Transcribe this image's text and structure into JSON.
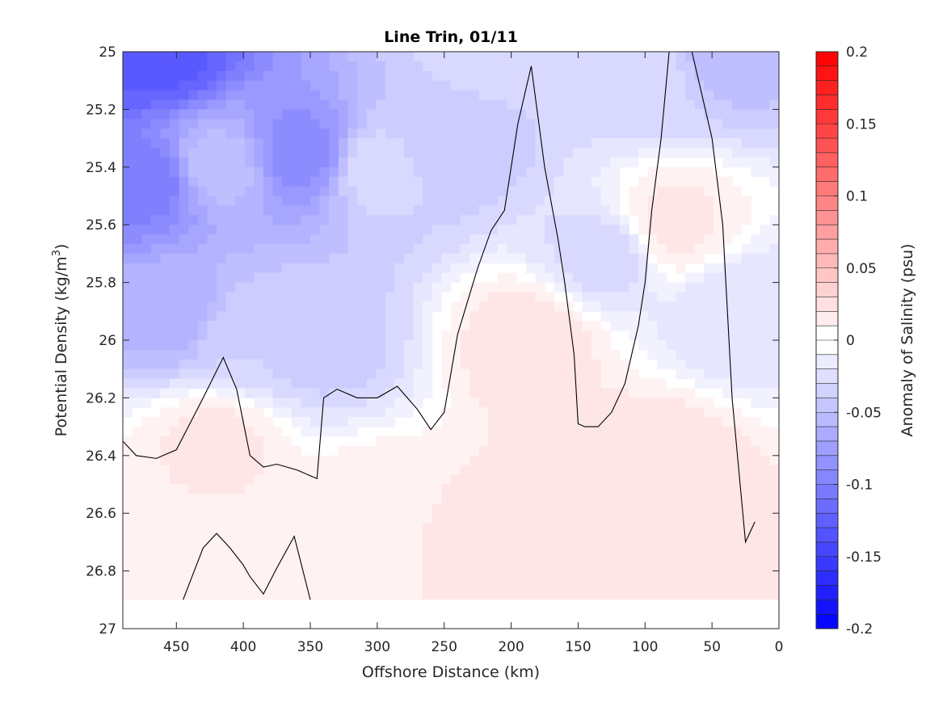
{
  "chart_data": {
    "type": "contour",
    "title": "Line Trin, 01/11",
    "xlabel": "Offshore Distance (km)",
    "ylabel": "Potential Density (kg/m",
    "ylabel_sup": "3",
    "ylabel_end": ")",
    "colorbar_label": "Anomaly of Salinity (psu)",
    "xlim": [
      490,
      0
    ],
    "ylim": [
      25,
      27
    ],
    "x_reversed": true,
    "y_reversed": true,
    "x_ticks": [
      450,
      400,
      350,
      300,
      250,
      200,
      150,
      100,
      50,
      0
    ],
    "y_ticks": [
      25,
      25.2,
      25.4,
      25.6,
      25.8,
      26,
      26.2,
      26.4,
      26.6,
      26.8,
      27
    ],
    "x_tick_labels": [
      "450",
      "400",
      "350",
      "300",
      "250",
      "200",
      "150",
      "100",
      "50",
      "0"
    ],
    "y_tick_labels": [
      "25",
      "25.2",
      "25.4",
      "25.6",
      "25.8",
      "26",
      "26.2",
      "26.4",
      "26.6",
      "26.8",
      "27"
    ],
    "colorbar_ticks": [
      0.2,
      0.15,
      0.1,
      0.05,
      0,
      -0.05,
      -0.1,
      -0.15,
      -0.2
    ],
    "colorbar_tick_labels": [
      "0.2",
      "0.15",
      "0.1",
      "0.05",
      "0",
      "-0.05",
      "-0.1",
      "-0.15",
      "-0.2"
    ],
    "clim": [
      -0.2,
      0.2
    ],
    "level_step": 0.01,
    "colormap": "blue-white-red",
    "colors": {
      "negative_max": "#0000ff",
      "zero": "#ffffff",
      "positive_max": "#ff0000",
      "zero_contour": "#000000"
    },
    "anomaly_fields": [
      {
        "x": 465,
        "y": 25.0,
        "value": -0.13
      },
      {
        "x": 470,
        "y": 25.45,
        "value": -0.1
      },
      {
        "x": 450,
        "y": 25.9,
        "value": -0.06
      },
      {
        "x": 420,
        "y": 25.4,
        "value": -0.05
      },
      {
        "x": 400,
        "y": 26.0,
        "value": -0.035
      },
      {
        "x": 355,
        "y": 25.35,
        "value": -0.09
      },
      {
        "x": 345,
        "y": 26.0,
        "value": -0.04
      },
      {
        "x": 300,
        "y": 25.4,
        "value": -0.03
      },
      {
        "x": 250,
        "y": 25.3,
        "value": -0.045
      },
      {
        "x": 220,
        "y": 25.0,
        "value": -0.03
      },
      {
        "x": 130,
        "y": 25.7,
        "value": -0.03
      },
      {
        "x": 100,
        "y": 25.1,
        "value": -0.03
      },
      {
        "x": 40,
        "y": 25.0,
        "value": -0.05
      },
      {
        "x": 30,
        "y": 25.9,
        "value": -0.025
      },
      {
        "x": 420,
        "y": 26.35,
        "value": 0.018
      },
      {
        "x": 470,
        "y": 26.75,
        "value": 0.012
      },
      {
        "x": 185,
        "y": 26.0,
        "value": 0.022
      },
      {
        "x": 170,
        "y": 26.65,
        "value": 0.025
      },
      {
        "x": 90,
        "y": 26.45,
        "value": 0.025
      },
      {
        "x": 80,
        "y": 25.6,
        "value": 0.018
      },
      {
        "x": 300,
        "y": 26.6,
        "value": 0.015
      }
    ],
    "zero_contours": [
      {
        "x": [
          490,
          480,
          465,
          450,
          430,
          415,
          405,
          395,
          385,
          375,
          360,
          345,
          340,
          330,
          315,
          300,
          285,
          270,
          260,
          250,
          240,
          225,
          215,
          205,
          195,
          185,
          175,
          165,
          160,
          153,
          150,
          145,
          135,
          125,
          115,
          105,
          100,
          95,
          88,
          82,
          75,
          65,
          55,
          50,
          42,
          35,
          25,
          18
        ],
        "y": [
          26.35,
          26.4,
          26.41,
          26.38,
          26.2,
          26.06,
          26.17,
          26.4,
          26.44,
          26.43,
          26.45,
          26.48,
          26.2,
          26.17,
          26.2,
          26.2,
          26.16,
          26.24,
          26.31,
          26.25,
          25.98,
          25.75,
          25.62,
          25.55,
          25.25,
          25.05,
          25.4,
          25.65,
          25.8,
          26.05,
          26.29,
          26.3,
          26.3,
          26.25,
          26.15,
          25.95,
          25.8,
          25.55,
          25.3,
          25.0,
          25.0,
          25.0,
          25.2,
          25.3,
          25.6,
          26.2,
          26.7,
          26.63
        ]
      },
      {
        "x": [
          445,
          430,
          420,
          410,
          400,
          395,
          385,
          375,
          362,
          350
        ],
        "y": [
          26.9,
          26.72,
          26.67,
          26.72,
          26.78,
          26.82,
          26.88,
          26.79,
          26.68,
          26.9
        ]
      }
    ]
  }
}
